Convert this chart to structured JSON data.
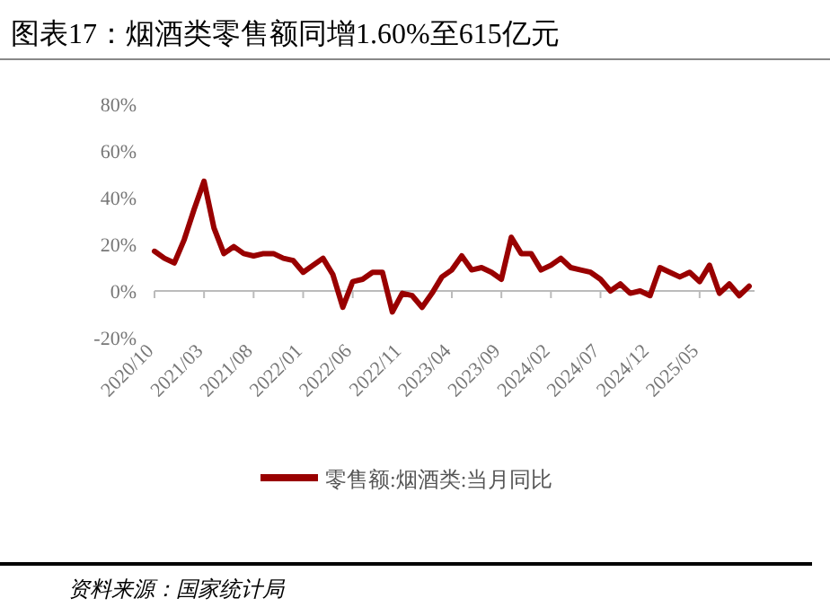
{
  "chart_data": {
    "type": "line",
    "title": "图表17：烟酒类零售额同增1.60%至615亿元",
    "categories": [
      "2020/10",
      null,
      null,
      null,
      null,
      "2021/03",
      null,
      null,
      null,
      null,
      "2021/08",
      null,
      null,
      null,
      null,
      "2022/01",
      null,
      null,
      null,
      null,
      "2022/06",
      null,
      null,
      null,
      null,
      "2022/11",
      null,
      null,
      null,
      null,
      "2023/04",
      null,
      null,
      null,
      null,
      "2023/09",
      null,
      null,
      null,
      null,
      "2024/02",
      null,
      null,
      null,
      null,
      "2024/07",
      null,
      null,
      null,
      null,
      "2024/12",
      null,
      null,
      null,
      null,
      "2025/05",
      null,
      null,
      null,
      null,
      null
    ],
    "series": [
      {
        "name": "零售额:烟酒类:当月同比",
        "color": "#990000",
        "values": [
          17,
          14,
          12,
          22,
          35,
          47,
          27,
          16,
          19,
          16,
          15,
          16,
          16,
          14,
          13,
          8,
          11,
          14,
          7,
          -7,
          4,
          5,
          8,
          8,
          -9,
          -1,
          -2,
          -7,
          -1,
          6,
          9,
          15,
          9,
          10,
          8,
          5,
          23,
          16,
          16,
          9,
          11,
          14,
          10,
          9,
          8,
          5,
          0,
          3,
          -1,
          0,
          -2,
          10,
          8,
          6,
          8,
          4,
          11,
          -1,
          3,
          -2,
          2
        ]
      }
    ],
    "ylim": [
      -20,
      80
    ],
    "yticks": [
      {
        "value": -20,
        "label": "-20%"
      },
      {
        "value": 0,
        "label": "0%"
      },
      {
        "value": 20,
        "label": "20%"
      },
      {
        "value": 40,
        "label": "40%"
      },
      {
        "value": 60,
        "label": "60%"
      },
      {
        "value": 80,
        "label": "80%"
      }
    ],
    "grid": false,
    "legend": "bottom",
    "line_style": "solid",
    "marker": "none",
    "annotations": [
      "资料来源：国家统计局"
    ]
  }
}
